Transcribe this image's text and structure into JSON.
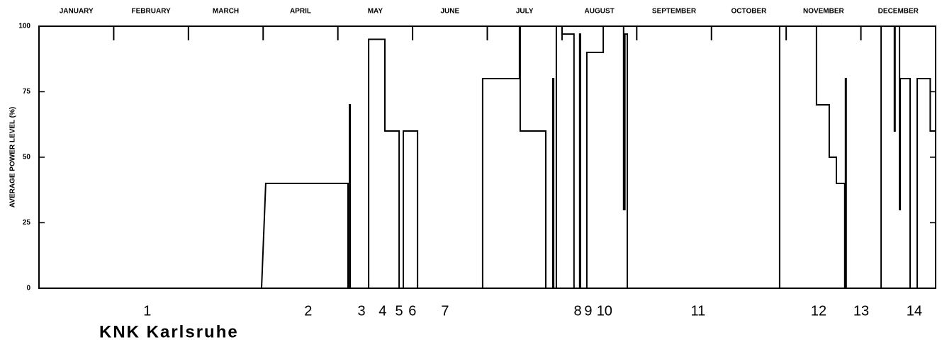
{
  "chart_data": {
    "type": "line",
    "ylabel": "AVERAGE POWER LEVEL (%)",
    "title": "KNK Karlsruhe",
    "months": [
      "JANUARY",
      "FEBRUARY",
      "MARCH",
      "APRIL",
      "MAY",
      "JUNE",
      "JULY",
      "AUGUST",
      "SEPTEMBER",
      "OCTOBER",
      "NOVEMBER",
      "DECEMBER"
    ],
    "xlim": [
      0,
      365
    ],
    "ylim": [
      0,
      100
    ],
    "yticks": [
      0,
      25,
      50,
      75,
      100
    ],
    "color": "#000000",
    "x": [
      0,
      90.6,
      92.3,
      125.8,
      125.8,
      126.4,
      126.4,
      126.7,
      126.7,
      134.2,
      134.2,
      140.8,
      140.8,
      146.6,
      146.6,
      148.3,
      148.3,
      154.1,
      154.1,
      180.6,
      180.6,
      195.6,
      195.6,
      195.9,
      195.9,
      206.3,
      206.3,
      209.2,
      209.2,
      209.5,
      209.5,
      210.6,
      210.6,
      212.9,
      212.9,
      217.8,
      217.8,
      220.1,
      220.1,
      220.4,
      220.4,
      223,
      223,
      229.7,
      229.7,
      238,
      238,
      238.5,
      238.5,
      239.5,
      239.5,
      301.5,
      301.5,
      316.5,
      316.5,
      321.7,
      321.7,
      324.6,
      324.6,
      328,
      328,
      328.3,
      328.3,
      328.6,
      328.6,
      342.8,
      342.8,
      348.2,
      348.2,
      348.5,
      348.5,
      350.3,
      350.3,
      350.6,
      350.6,
      354.6,
      354.6,
      357.5,
      357.5,
      362.8,
      362.8,
      365
    ],
    "values": [
      0,
      0,
      40,
      40,
      0,
      0,
      70,
      70,
      0,
      0,
      95,
      95,
      60,
      60,
      0,
      0,
      60,
      60,
      0,
      0,
      80,
      80,
      100,
      100,
      60,
      60,
      0,
      0,
      80,
      80,
      0,
      0,
      100,
      100,
      97,
      97,
      0,
      0,
      97,
      97,
      0,
      0,
      90,
      90,
      100,
      100,
      30,
      30,
      97,
      97,
      0,
      0,
      100,
      100,
      70,
      70,
      50,
      50,
      40,
      40,
      0,
      0,
      80,
      80,
      0,
      0,
      100,
      100,
      60,
      60,
      100,
      100,
      30,
      30,
      80,
      80,
      0,
      0,
      80,
      80,
      60,
      60
    ],
    "cycles": [
      {
        "label": "1",
        "x": 44.1
      },
      {
        "label": "2",
        "x": 109.6
      },
      {
        "label": "3",
        "x": 131.3
      },
      {
        "label": "4",
        "x": 139.9
      },
      {
        "label": "5",
        "x": 146.6
      },
      {
        "label": "6",
        "x": 152
      },
      {
        "label": "7",
        "x": 165.3
      },
      {
        "label": "8",
        "x": 219.3
      },
      {
        "label": "9",
        "x": 223.6
      },
      {
        "label": "10",
        "x": 230.2
      },
      {
        "label": "11",
        "x": 268.3
      },
      {
        "label": "12",
        "x": 317.4
      },
      {
        "label": "13",
        "x": 334.7
      },
      {
        "label": "14",
        "x": 356.3
      }
    ]
  }
}
